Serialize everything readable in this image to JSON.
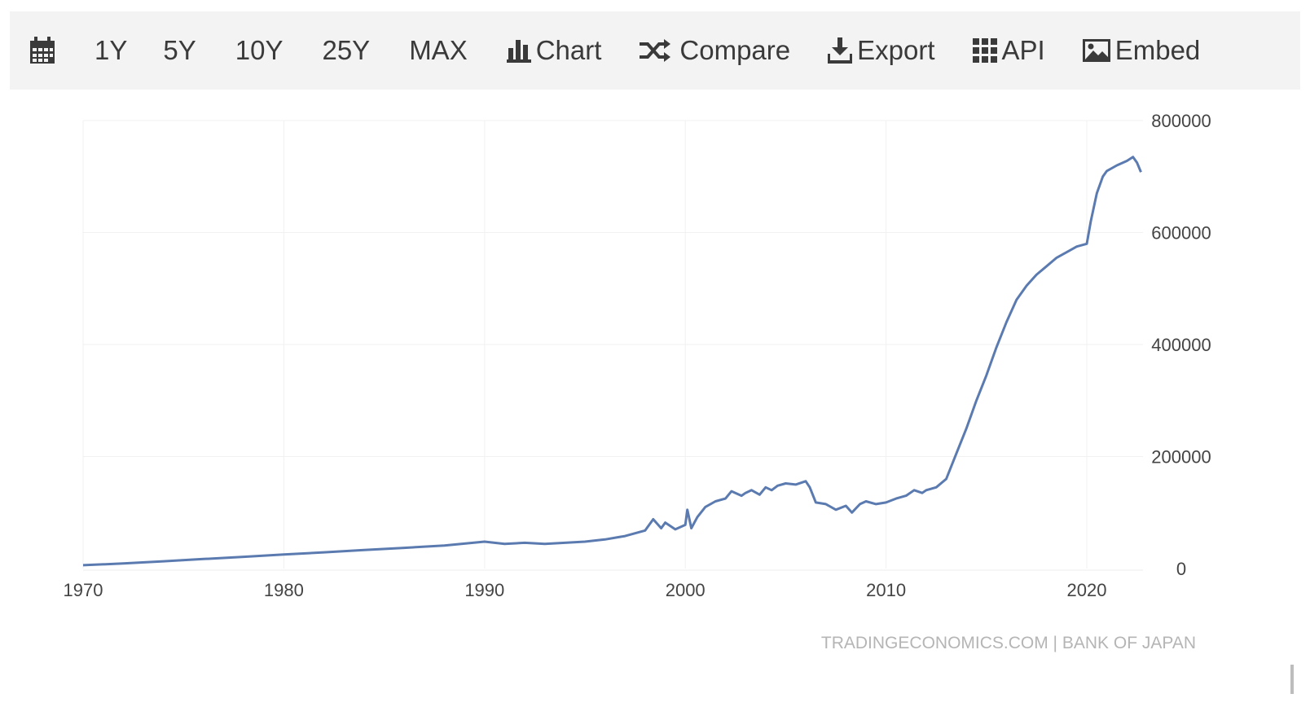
{
  "toolbar": {
    "calendar_icon": "calendar-icon",
    "ranges": [
      "1Y",
      "5Y",
      "10Y",
      "25Y",
      "MAX"
    ],
    "actions": [
      {
        "label": "Chart",
        "icon": "bar-chart-icon"
      },
      {
        "label": "Compare",
        "icon": "shuffle-icon"
      },
      {
        "label": "Export",
        "icon": "download-icon"
      },
      {
        "label": "API",
        "icon": "grid-icon"
      },
      {
        "label": "Embed",
        "icon": "image-icon"
      }
    ]
  },
  "colors": {
    "line": "#5b7bb0",
    "toolbar_bg": "#f3f3f3",
    "axis_text": "#444444",
    "watermark": "#b5b5b5"
  },
  "credit": "TRADINGECONOMICS.COM | BANK OF JAPAN",
  "chart_data": {
    "type": "line",
    "title": "",
    "xlabel": "",
    "ylabel": "",
    "xlim": [
      1970,
      2022.8
    ],
    "ylim": [
      0,
      800000
    ],
    "x_ticks": [
      "1970",
      "1980",
      "1990",
      "2000",
      "2010",
      "2020"
    ],
    "y_ticks": [
      "800000",
      "600000",
      "400000",
      "200000",
      "0"
    ],
    "y_axis_side": "right",
    "grid": true,
    "legend": "none",
    "series": [
      {
        "x": [
          1970,
          1972,
          1974,
          1976,
          1978,
          1980,
          1982,
          1984,
          1986,
          1988,
          1990,
          1991,
          1992,
          1993,
          1994,
          1995,
          1996,
          1997,
          1998,
          1998.4,
          1998.8,
          1999,
          1999.5,
          2000,
          2000.1,
          2000.3,
          2000.6,
          2001,
          2001.5,
          2002,
          2002.3,
          2002.8,
          2003,
          2003.3,
          2003.7,
          2004,
          2004.3,
          2004.6,
          2005,
          2005.5,
          2006,
          2006.2,
          2006.5,
          2007,
          2007.5,
          2008,
          2008.3,
          2008.7,
          2009,
          2009.5,
          2010,
          2010.5,
          2011,
          2011.4,
          2011.8,
          2012,
          2012.5,
          2013,
          2013.5,
          2014,
          2014.5,
          2015,
          2015.5,
          2016,
          2016.5,
          2017,
          2017.5,
          2018,
          2018.5,
          2019,
          2019.5,
          2020,
          2020.2,
          2020.5,
          2020.8,
          2021,
          2021.5,
          2022,
          2022.3,
          2022.5,
          2022.7
        ],
        "y": [
          6000,
          9000,
          13000,
          17000,
          21000,
          25000,
          29000,
          33000,
          37000,
          41000,
          48000,
          44000,
          46000,
          44000,
          46000,
          48000,
          52000,
          58000,
          68000,
          88000,
          72000,
          82000,
          70000,
          78000,
          105000,
          72000,
          92000,
          110000,
          120000,
          125000,
          138000,
          130000,
          135000,
          140000,
          132000,
          145000,
          140000,
          148000,
          152000,
          150000,
          156000,
          145000,
          118000,
          115000,
          105000,
          112000,
          100000,
          115000,
          120000,
          115000,
          118000,
          125000,
          130000,
          140000,
          135000,
          140000,
          145000,
          160000,
          205000,
          250000,
          300000,
          345000,
          395000,
          440000,
          480000,
          505000,
          525000,
          540000,
          555000,
          565000,
          575000,
          580000,
          620000,
          670000,
          700000,
          710000,
          720000,
          728000,
          735000,
          725000,
          708000
        ]
      }
    ]
  }
}
